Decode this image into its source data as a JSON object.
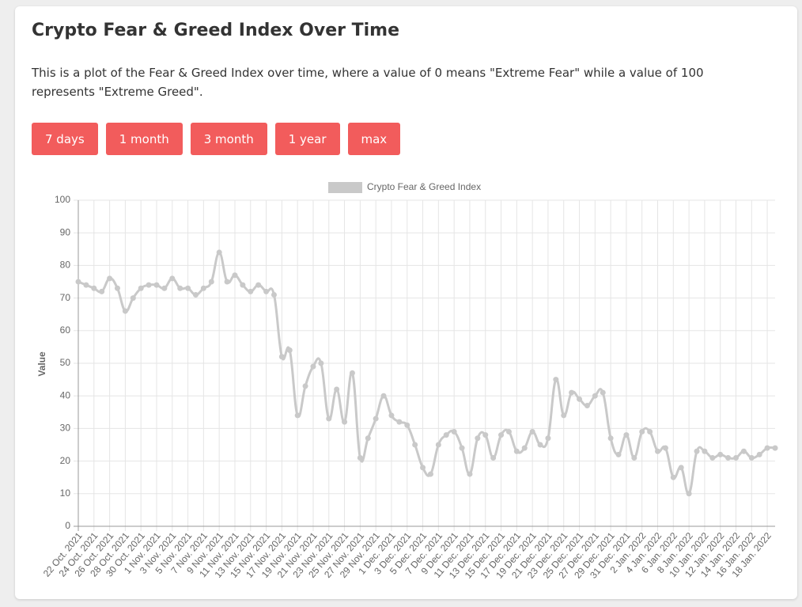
{
  "header": {
    "title": "Crypto Fear & Greed Index Over Time",
    "description": "This is a plot of the Fear & Greed Index over time, where a value of 0 means \"Extreme Fear\" while a value of 100 represents \"Extreme Greed\"."
  },
  "buttons": [
    "7 days",
    "1 month",
    "3 month",
    "1 year",
    "max"
  ],
  "chart_data": {
    "type": "line",
    "y_label": "Value",
    "ylim": [
      0,
      100
    ],
    "yticks": [
      0,
      10,
      20,
      30,
      40,
      50,
      60,
      70,
      80,
      90,
      100
    ],
    "grid": true,
    "legend": "top",
    "categories": [
      "22 Oct. 2021",
      null,
      "24 Oct. 2021",
      null,
      "26 Oct. 2021",
      null,
      "28 Oct. 2021",
      null,
      "30 Oct. 2021",
      null,
      "1 Nov. 2021",
      null,
      "3 Nov. 2021",
      null,
      "5 Nov. 2021",
      null,
      "7 Nov. 2021",
      null,
      "9 Nov. 2021",
      null,
      "11 Nov. 2021",
      null,
      "13 Nov. 2021",
      null,
      "15 Nov. 2021",
      null,
      "17 Nov. 2021",
      null,
      "19 Nov. 2021",
      null,
      "21 Nov. 2021",
      null,
      "23 Nov. 2021",
      null,
      "25 Nov. 2021",
      null,
      "27 Nov. 2021",
      null,
      "29 Nov. 2021",
      null,
      "1 Dec. 2021",
      null,
      "3 Dec. 2021",
      null,
      "5 Dec. 2021",
      null,
      "7 Dec. 2021",
      null,
      "9 Dec. 2021",
      null,
      "11 Dec. 2021",
      null,
      "13 Dec. 2021",
      null,
      "15 Dec. 2021",
      null,
      "17 Dec. 2021",
      null,
      "19 Dec. 2021",
      null,
      "21 Dec. 2021",
      null,
      "23 Dec. 2021",
      null,
      "25 Dec. 2021",
      null,
      "27 Dec. 2021",
      null,
      "29 Dec. 2021",
      null,
      "31 Dec. 2021",
      null,
      "2 Jan. 2022",
      null,
      "4 Jan. 2022",
      null,
      "6 Jan. 2022",
      null,
      "8 Jan. 2022",
      null,
      "10 Jan. 2022",
      null,
      "12 Jan. 2022",
      null,
      "14 Jan. 2022",
      null,
      "16 Jan. 2022",
      null,
      "18 Jan. 2022",
      null
    ],
    "series": [
      {
        "name": "Crypto Fear & Greed Index",
        "color": "#c9c9c9",
        "values": [
          75,
          74,
          73,
          72,
          76,
          73,
          66,
          70,
          73,
          74,
          74,
          73,
          76,
          73,
          73,
          71,
          73,
          75,
          84,
          75,
          77,
          74,
          72,
          74,
          72,
          71,
          52,
          54,
          34,
          43,
          49,
          50,
          33,
          42,
          32,
          47,
          21,
          27,
          33,
          40,
          34,
          32,
          31,
          25,
          18,
          16,
          25,
          28,
          29,
          24,
          16,
          27,
          28,
          21,
          28,
          29,
          23,
          24,
          29,
          25,
          27,
          45,
          34,
          41,
          39,
          37,
          40,
          41,
          27,
          22,
          28,
          21,
          29,
          29,
          23,
          24,
          15,
          18,
          10,
          23,
          23,
          21,
          22,
          21,
          21,
          23,
          21,
          22,
          24,
          24
        ]
      }
    ]
  }
}
